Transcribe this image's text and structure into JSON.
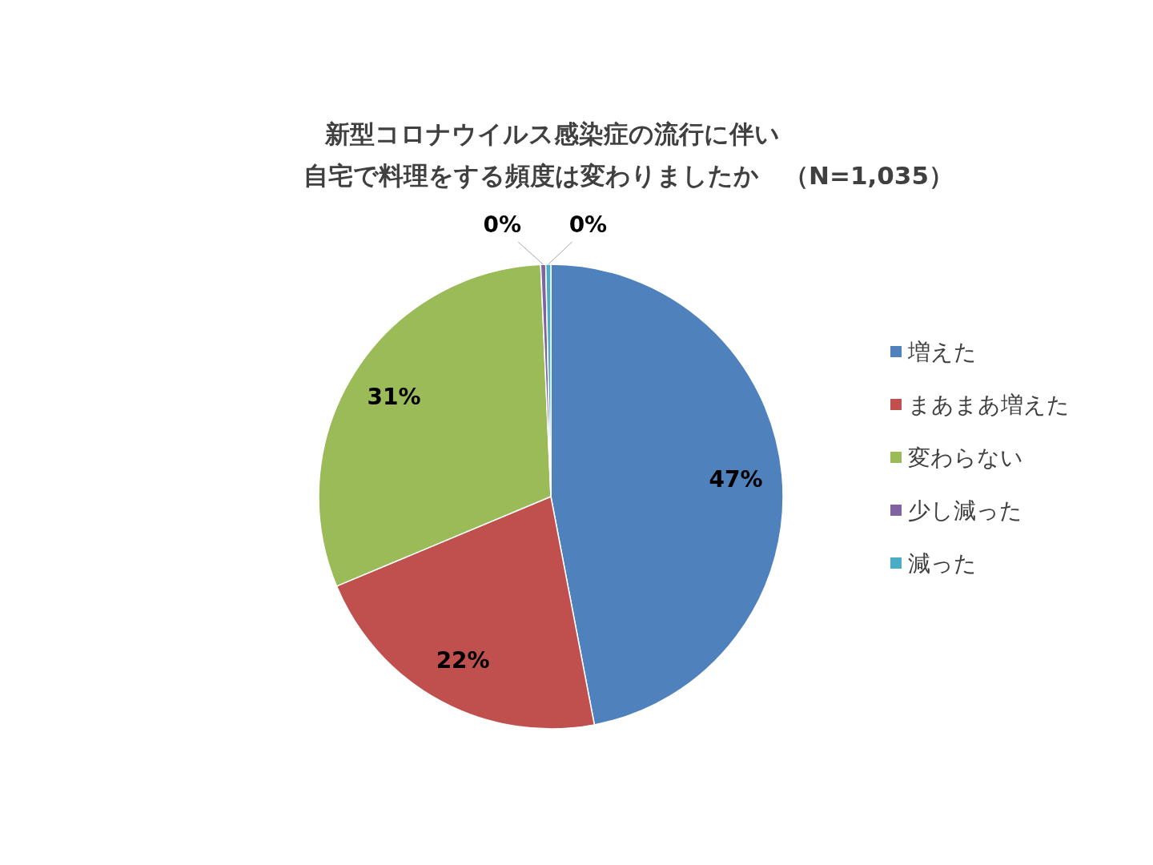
{
  "chart_data": {
    "type": "pie",
    "title": "新型コロナウイルス感染症の流行に伴い",
    "subtitle": "自宅で料理をする頻度は変わりましたか　（N=1,035）",
    "categories": [
      "増えた",
      "まあまあ増えた",
      "変わらない",
      "少し減った",
      "減った"
    ],
    "values": [
      47.0,
      21.7,
      30.6,
      0.35,
      0.35
    ],
    "value_labels": [
      "47%",
      "22%",
      "31%",
      "0%",
      "0%"
    ],
    "colors": [
      "#4f81bd",
      "#c0504d",
      "#9bbb59",
      "#8064a2",
      "#4bacc6"
    ],
    "legend": "right"
  }
}
